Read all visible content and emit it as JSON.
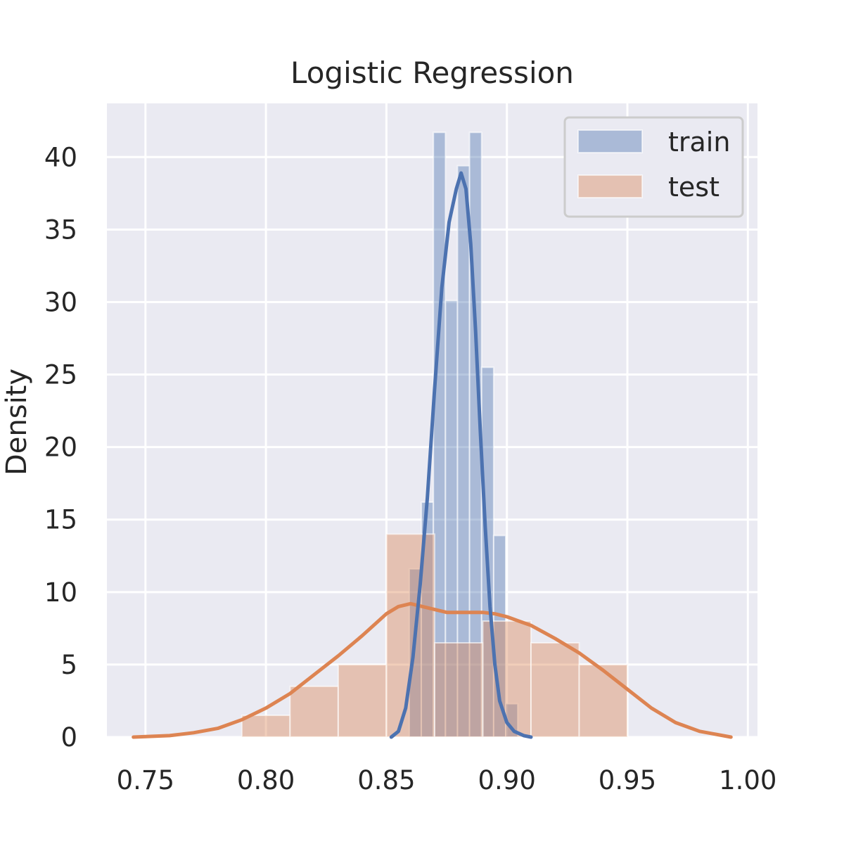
{
  "chart_data": {
    "type": "bar",
    "title": "Logistic Regression",
    "xlabel": "",
    "ylabel": "Density",
    "xlim": [
      0.734,
      1.004
    ],
    "ylim": [
      0,
      43.7
    ],
    "xticks": [
      0.75,
      0.8,
      0.85,
      0.9,
      0.95,
      1.0
    ],
    "xtick_labels": [
      "0.75",
      "0.80",
      "0.85",
      "0.90",
      "0.95",
      "1.00"
    ],
    "yticks": [
      0,
      5,
      10,
      15,
      20,
      25,
      30,
      35,
      40
    ],
    "ytick_labels": [
      "0",
      "5",
      "10",
      "15",
      "20",
      "25",
      "30",
      "35",
      "40"
    ],
    "grid": true,
    "legend_position": "top-right",
    "series": [
      {
        "name": "train",
        "kind": "histogram",
        "color": "#4c72b0",
        "bins": [
          {
            "x0": 0.8595,
            "x1": 0.8645,
            "density": 11.6
          },
          {
            "x0": 0.8645,
            "x1": 0.8695,
            "density": 16.2
          },
          {
            "x0": 0.8695,
            "x1": 0.8745,
            "density": 41.7
          },
          {
            "x0": 0.8745,
            "x1": 0.8795,
            "density": 30.1
          },
          {
            "x0": 0.8795,
            "x1": 0.8845,
            "density": 39.4
          },
          {
            "x0": 0.8845,
            "x1": 0.8895,
            "density": 41.7
          },
          {
            "x0": 0.8895,
            "x1": 0.8945,
            "density": 25.5
          },
          {
            "x0": 0.8945,
            "x1": 0.8995,
            "density": 13.9
          },
          {
            "x0": 0.8995,
            "x1": 0.9045,
            "density": 2.3
          }
        ],
        "kde": [
          [
            0.852,
            0.0
          ],
          [
            0.855,
            0.4
          ],
          [
            0.858,
            2.0
          ],
          [
            0.861,
            5.5
          ],
          [
            0.864,
            10.5
          ],
          [
            0.867,
            16.5
          ],
          [
            0.87,
            24.0
          ],
          [
            0.873,
            31.0
          ],
          [
            0.876,
            35.5
          ],
          [
            0.879,
            37.8
          ],
          [
            0.881,
            38.9
          ],
          [
            0.883,
            37.8
          ],
          [
            0.885,
            34.0
          ],
          [
            0.887,
            28.0
          ],
          [
            0.889,
            21.0
          ],
          [
            0.891,
            14.5
          ],
          [
            0.893,
            9.0
          ],
          [
            0.895,
            5.0
          ],
          [
            0.897,
            2.5
          ],
          [
            0.9,
            1.0
          ],
          [
            0.903,
            0.4
          ],
          [
            0.907,
            0.1
          ],
          [
            0.91,
            0.0
          ]
        ]
      },
      {
        "name": "test",
        "kind": "histogram",
        "color": "#dd8452",
        "bins": [
          {
            "x0": 0.79,
            "x1": 0.81,
            "density": 1.5
          },
          {
            "x0": 0.81,
            "x1": 0.83,
            "density": 3.5
          },
          {
            "x0": 0.83,
            "x1": 0.85,
            "density": 5.0
          },
          {
            "x0": 0.85,
            "x1": 0.87,
            "density": 14.0
          },
          {
            "x0": 0.87,
            "x1": 0.89,
            "density": 6.5
          },
          {
            "x0": 0.89,
            "x1": 0.91,
            "density": 8.0
          },
          {
            "x0": 0.91,
            "x1": 0.93,
            "density": 6.5
          },
          {
            "x0": 0.93,
            "x1": 0.95,
            "density": 5.0
          }
        ],
        "kde": [
          [
            0.745,
            0.0
          ],
          [
            0.76,
            0.1
          ],
          [
            0.77,
            0.3
          ],
          [
            0.78,
            0.6
          ],
          [
            0.79,
            1.2
          ],
          [
            0.8,
            2.0
          ],
          [
            0.81,
            3.0
          ],
          [
            0.82,
            4.3
          ],
          [
            0.83,
            5.6
          ],
          [
            0.84,
            7.0
          ],
          [
            0.85,
            8.5
          ],
          [
            0.855,
            9.0
          ],
          [
            0.86,
            9.2
          ],
          [
            0.865,
            9.0
          ],
          [
            0.87,
            8.8
          ],
          [
            0.875,
            8.6
          ],
          [
            0.88,
            8.6
          ],
          [
            0.885,
            8.6
          ],
          [
            0.89,
            8.6
          ],
          [
            0.895,
            8.5
          ],
          [
            0.9,
            8.3
          ],
          [
            0.905,
            8.0
          ],
          [
            0.91,
            7.7
          ],
          [
            0.92,
            6.8
          ],
          [
            0.93,
            5.8
          ],
          [
            0.94,
            4.6
          ],
          [
            0.95,
            3.3
          ],
          [
            0.96,
            2.0
          ],
          [
            0.97,
            1.0
          ],
          [
            0.98,
            0.4
          ],
          [
            0.993,
            0.0
          ]
        ]
      }
    ]
  }
}
